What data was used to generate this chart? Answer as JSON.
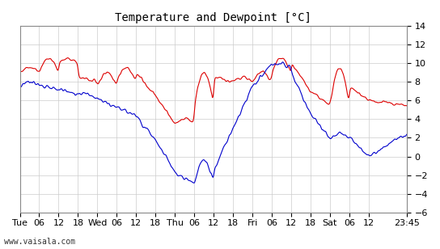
{
  "title": "Temperature and Dewpoint [°C]",
  "ylabel": "",
  "ylim": [
    -6,
    14
  ],
  "yticks": [
    -6,
    -4,
    -2,
    0,
    2,
    4,
    6,
    8,
    10,
    12,
    14
  ],
  "background_color": "#ffffff",
  "plot_bg_color": "#ffffff",
  "grid_color": "#cccccc",
  "temp_color": "#dd0000",
  "dewp_color": "#0000cc",
  "watermark": "www.vaisala.com",
  "xtick_labels": [
    "Tue",
    "06",
    "12",
    "18",
    "Wed",
    "06",
    "12",
    "18",
    "Thu",
    "06",
    "12",
    "18",
    "Fri",
    "06",
    "12",
    "18",
    "Sat",
    "06",
    "12",
    "23:45"
  ],
  "xtick_positions": [
    0,
    6,
    12,
    18,
    24,
    30,
    36,
    42,
    48,
    54,
    60,
    66,
    72,
    78,
    84,
    90,
    96,
    102,
    108,
    119.75
  ],
  "total_hours": 119.75,
  "seed": 42
}
